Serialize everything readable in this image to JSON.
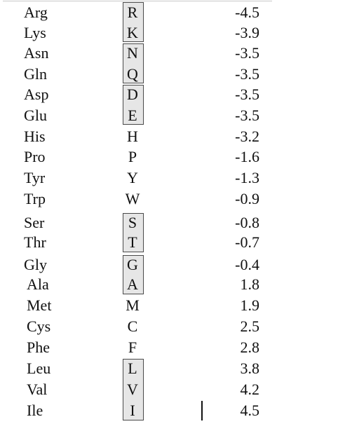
{
  "table": {
    "rows": [
      {
        "name": "Arg",
        "code": "R",
        "value": "-4.5",
        "boxed": true
      },
      {
        "name": "Lys",
        "code": "K",
        "value": "-3.9",
        "boxed": true
      },
      {
        "name": "Asn",
        "code": "N",
        "value": "-3.5",
        "boxed": true
      },
      {
        "name": "Gln",
        "code": "Q",
        "value": "-3.5",
        "boxed": true
      },
      {
        "name": "Asp",
        "code": "D",
        "value": "-3.5",
        "boxed": true
      },
      {
        "name": "Glu",
        "code": "E",
        "value": "-3.5",
        "boxed": true
      },
      {
        "name": "His",
        "code": "H",
        "value": "-3.2",
        "boxed": false
      },
      {
        "name": "Pro",
        "code": "P",
        "value": "-1.6",
        "boxed": false
      },
      {
        "name": "Tyr",
        "code": "Y",
        "value": "-1.3",
        "boxed": false
      },
      {
        "name": "Trp",
        "code": "W",
        "value": "-0.9",
        "boxed": false
      },
      {
        "name": "Ser",
        "code": "S",
        "value": "-0.8",
        "boxed": true
      },
      {
        "name": "Thr",
        "code": "T",
        "value": "-0.7",
        "boxed": true
      },
      {
        "name": "Gly",
        "code": "G",
        "value": "-0.4",
        "boxed": true
      },
      {
        "name": "Ala",
        "code": "A",
        "value": "1.8",
        "boxed": true
      },
      {
        "name": "Met",
        "code": "M",
        "value": "1.9",
        "boxed": false
      },
      {
        "name": "Cys",
        "code": "C",
        "value": "2.5",
        "boxed": false
      },
      {
        "name": "Phe",
        "code": "F",
        "value": "2.8",
        "boxed": false
      },
      {
        "name": "Leu",
        "code": "L",
        "value": "3.8",
        "boxed": true
      },
      {
        "name": "Val",
        "code": "V",
        "value": "4.2",
        "boxed": true
      },
      {
        "name": "Ile",
        "code": "I",
        "value": "4.5",
        "boxed": true
      }
    ]
  }
}
